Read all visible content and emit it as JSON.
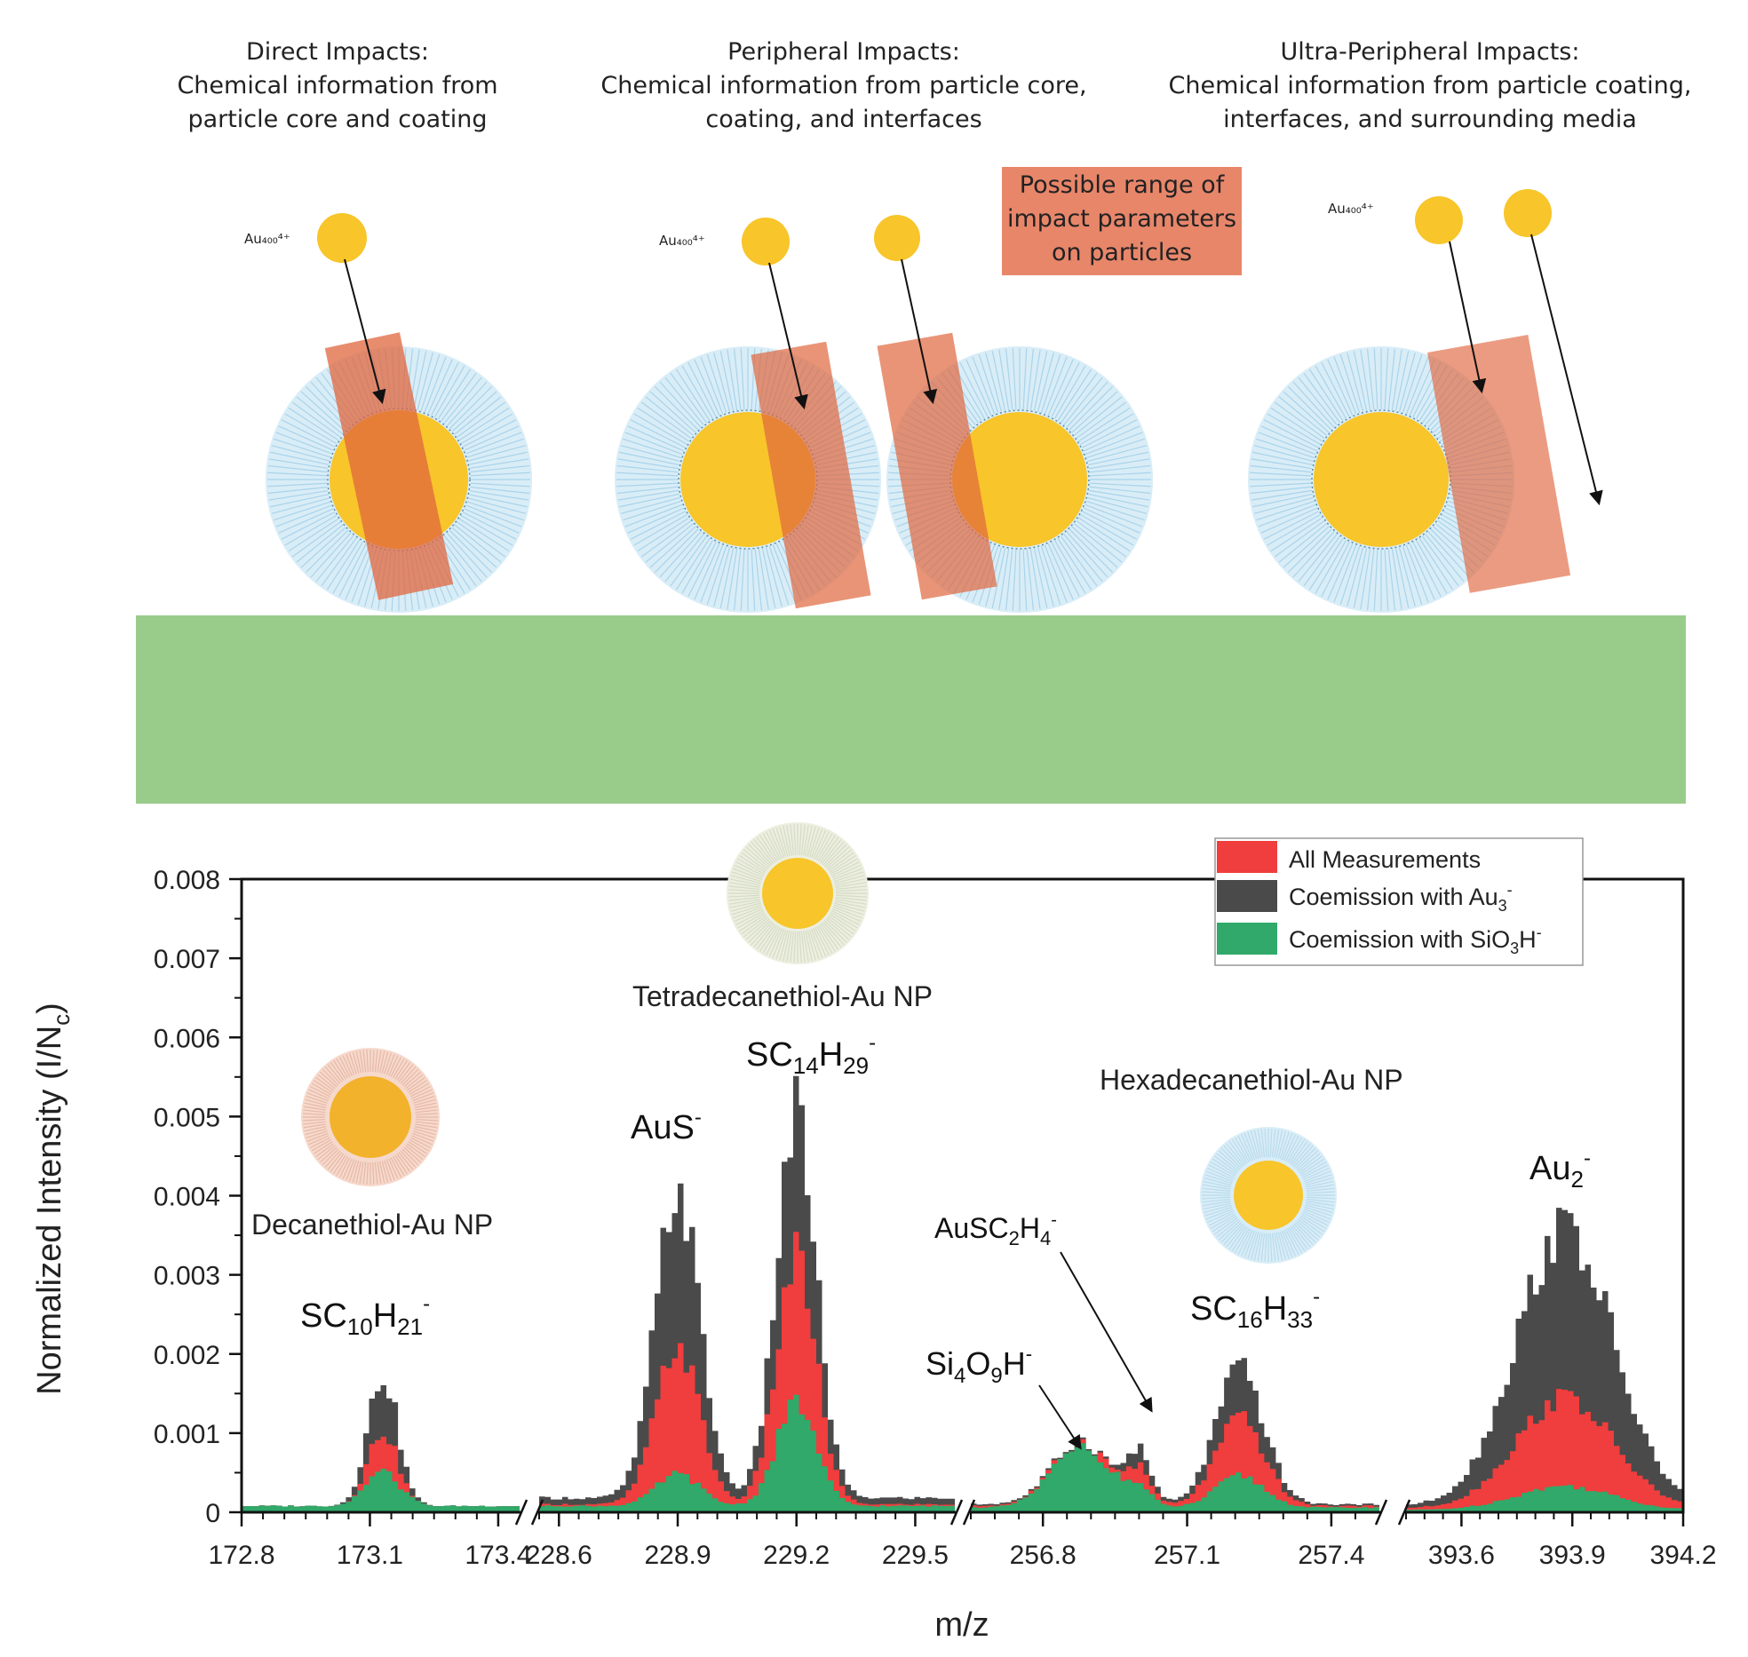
{
  "panels": [
    {
      "title": "Direct Impacts:",
      "desc1": "Chemical information from",
      "desc2": "particle core and coating",
      "projectile": "Au₄₀₀⁴⁺"
    },
    {
      "title": "Peripheral Impacts:",
      "desc1": "Chemical information from particle core,",
      "desc2": "coating, and interfaces",
      "projectile": "Au₄₀₀⁴⁺"
    },
    {
      "title": "Ultra-Peripheral Impacts:",
      "desc1": "Chemical information from particle coating,",
      "desc2": "interfaces, and surrounding media",
      "projectile": "Au₄₀₀⁴⁺"
    }
  ],
  "range_box": [
    "Possible range of",
    "impact parameters",
    "on particles"
  ],
  "colors": {
    "core": "#f8c52a",
    "shell": "#d9edf7",
    "impact_zone": "#e8866a",
    "substrate": "#99cc8a",
    "all": "#f03d3d",
    "au3": "#4a4a4a",
    "sio3h": "#30a96a"
  },
  "chart_data": {
    "type": "area",
    "xlabel": "m/z",
    "ylabel": "Normalized Intensity (I/N",
    "ylabel_sub": "c",
    "ylabel_end": ")",
    "ylim": [
      0,
      0.008
    ],
    "yticks": [
      "0",
      "0.001",
      "0.002",
      "0.003",
      "0.004",
      "0.005",
      "0.006",
      "0.007",
      "0.008"
    ],
    "legend": [
      {
        "label": "All Measurements",
        "color": "#f03d3d"
      },
      {
        "label": "Coemission with Au",
        "sub": "3",
        "sup": "-",
        "color": "#4a4a4a"
      },
      {
        "label": "Coemission with SiO",
        "sub": "3",
        "tail": "H",
        "sup": "-",
        "color": "#30a96a"
      }
    ],
    "segments": [
      {
        "range": [
          172.8,
          173.45
        ],
        "ticks": [
          "172.8",
          "173.1",
          "173.4"
        ],
        "peaks": [
          {
            "center": 173.13,
            "width": 0.035,
            "all": 0.00095,
            "au3": 0.00165,
            "sio3h": 0.0004
          }
        ],
        "base": {
          "all": 8e-05,
          "au3": 8e-05,
          "sio3h": 0.00012
        }
      },
      {
        "range": [
          228.55,
          229.6
        ],
        "ticks": [
          "228.6",
          "228.9",
          "229.2",
          "229.5"
        ],
        "peaks": [
          {
            "center": 228.9,
            "width": 0.055,
            "all": 0.002,
            "au3": 0.0039,
            "sio3h": 0.0004
          },
          {
            "center": 229.2,
            "width": 0.05,
            "all": 0.0031,
            "au3": 0.0048,
            "sio3h": 0.0013
          }
        ],
        "base": {
          "all": 0.0001,
          "au3": 0.00018,
          "sio3h": 8e-05
        }
      },
      {
        "range": [
          256.65,
          257.5
        ],
        "ticks": [
          "256.8",
          "257.1",
          "257.4"
        ],
        "peaks": [
          {
            "center": 256.88,
            "width": 0.06,
            "all": 0.0008,
            "au3": 0.0008,
            "sio3h": 0.0008
          },
          {
            "center": 257.0,
            "width": 0.025,
            "all": 0.0004,
            "au3": 0.0006,
            "sio3h": 0.0002
          },
          {
            "center": 257.21,
            "width": 0.05,
            "all": 0.0011,
            "au3": 0.0017,
            "sio3h": 0.0004
          }
        ],
        "base": {
          "all": 8e-05,
          "au3": 0.0001,
          "sio3h": 6e-05
        }
      },
      {
        "range": [
          393.45,
          394.2
        ],
        "ticks": [
          "393.6",
          "393.9",
          "394.2"
        ],
        "peaks": [
          {
            "center": 393.88,
            "width": 0.13,
            "all": 0.0014,
            "au3": 0.0035,
            "sio3h": 0.0003
          }
        ],
        "base": {
          "all": 5e-05,
          "au3": 8e-05,
          "sio3h": 3e-05
        }
      }
    ],
    "labels": {
      "sc10": {
        "base": "SC",
        "s1": "10",
        "m": "H",
        "s2": "21",
        "sup": "-"
      },
      "aus": {
        "base": "AuS",
        "sup": "-"
      },
      "sc14": {
        "base": "SC",
        "s1": "14",
        "m": "H",
        "s2": "29",
        "sup": "-"
      },
      "si4": {
        "base": "Si",
        "s1": "4",
        "m": "O",
        "s2": "9",
        "tail": "H",
        "sup": "-"
      },
      "ausc2": {
        "base": "AuSC",
        "s1": "2",
        "m": "H",
        "s2": "4",
        "sup": "-"
      },
      "sc16": {
        "base": "SC",
        "s1": "16",
        "m": "H",
        "s2": "33",
        "sup": "-"
      },
      "au2": {
        "base": "Au",
        "s1": "2",
        "sup": "-"
      }
    },
    "np_labels": {
      "decanethiol": "Decanethiol-Au NP",
      "tetradecanethiol": "Tetradecanethiol-Au NP",
      "hexadecanethiol": "Hexadecanethiol-Au NP"
    }
  }
}
